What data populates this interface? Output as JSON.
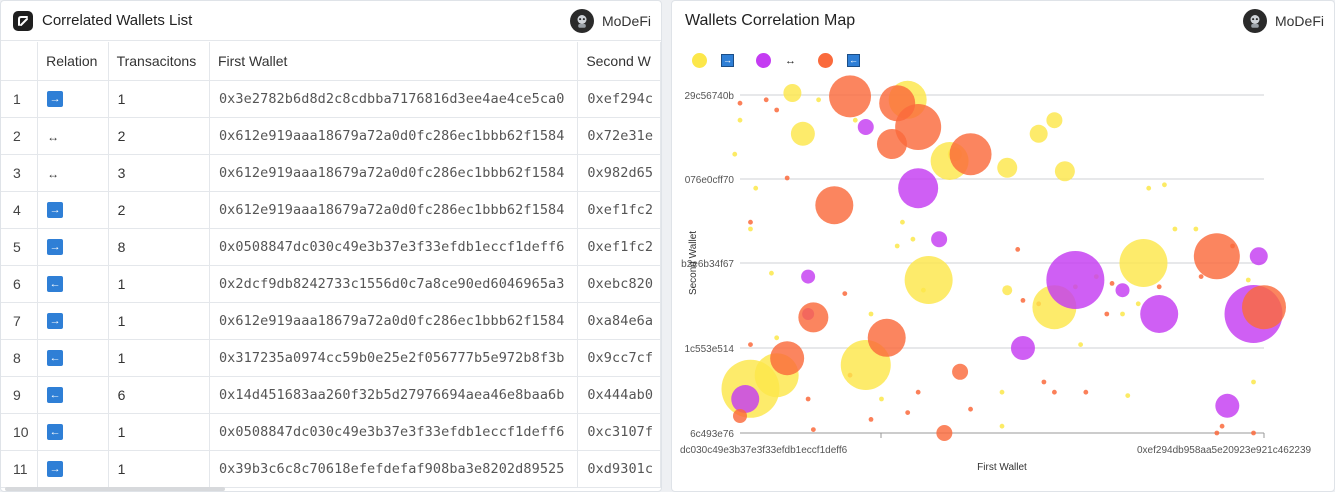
{
  "left_panel": {
    "title": "Correlated Wallets List",
    "brand": "MoDeFi",
    "columns": [
      "",
      "Relation",
      "Transacitons",
      "First Wallet",
      "Second W"
    ],
    "rows": [
      {
        "idx": "1",
        "relation": "→",
        "relation_type": "box",
        "tx": "1",
        "first": "0x3e2782b6d8d2c8cdbba7176816d3ee4ae4ce5ca0",
        "second": "0xef294c"
      },
      {
        "idx": "2",
        "relation": "↔",
        "relation_type": "plain",
        "tx": "2",
        "first": "0x612e919aaa18679a72a0d0fc286ec1bbb62f1584",
        "second": "0x72e31e"
      },
      {
        "idx": "3",
        "relation": "↔",
        "relation_type": "plain",
        "tx": "3",
        "first": "0x612e919aaa18679a72a0d0fc286ec1bbb62f1584",
        "second": "0x982d65"
      },
      {
        "idx": "4",
        "relation": "→",
        "relation_type": "box",
        "tx": "2",
        "first": "0x612e919aaa18679a72a0d0fc286ec1bbb62f1584",
        "second": "0xef1fc2"
      },
      {
        "idx": "5",
        "relation": "→",
        "relation_type": "box",
        "tx": "8",
        "first": "0x0508847dc030c49e3b37e3f33efdb1eccf1deff6",
        "second": "0xef1fc2"
      },
      {
        "idx": "6",
        "relation": "←",
        "relation_type": "box",
        "tx": "1",
        "first": "0x2dcf9db8242733c1556d0c7a8ce90ed6046965a3",
        "second": "0xebc820"
      },
      {
        "idx": "7",
        "relation": "→",
        "relation_type": "box",
        "tx": "1",
        "first": "0x612e919aaa18679a72a0d0fc286ec1bbb62f1584",
        "second": "0xa84e6a"
      },
      {
        "idx": "8",
        "relation": "←",
        "relation_type": "box",
        "tx": "1",
        "first": "0x317235a0974cc59b0e25e2f056777b5e972b8f3b",
        "second": "0x9cc7cf"
      },
      {
        "idx": "9",
        "relation": "←",
        "relation_type": "box",
        "tx": "6",
        "first": "0x14d451683aa260f32b5d27976694aea46e8baa6b",
        "second": "0x444ab0"
      },
      {
        "idx": "10",
        "relation": "←",
        "relation_type": "box",
        "tx": "1",
        "first": "0x0508847dc030c49e3b37e3f33efdb1eccf1deff6",
        "second": "0xc3107f"
      },
      {
        "idx": "11",
        "relation": "→",
        "relation_type": "box",
        "tx": "1",
        "first": "0x39b3c6c8c70618efefdefaf908ba3e8202d89525",
        "second": "0xd9301c"
      }
    ]
  },
  "right_panel": {
    "title": "Wallets Correlation Map",
    "brand": "MoDeFi"
  },
  "chart_data": {
    "type": "scatter",
    "xlabel": "First Wallet",
    "ylabel": "Second Wallet",
    "x_ticks": [
      "dc030c49e3b37e3f33efdb1eccf1deff6",
      "0xef294db958aa5e20923e921c462239"
    ],
    "y_ticks": [
      "29c56740b",
      "076e0cff70",
      "b2e6b34f67",
      "1c553e514",
      "6c493e76"
    ],
    "grid": true,
    "legend_position": "top-left",
    "series": [
      {
        "symbol": "→",
        "color": "#fce74a"
      },
      {
        "symbol": "↔",
        "color": "#c43cf2"
      },
      {
        "symbol": "←",
        "color": "#fa6a3c"
      }
    ],
    "points": [
      {
        "x": 0.02,
        "y": 0.13,
        "r": 29,
        "s": 0
      },
      {
        "x": 0.07,
        "y": 0.17,
        "r": 22,
        "s": 0
      },
      {
        "x": 0.24,
        "y": 0.2,
        "r": 25,
        "s": 0
      },
      {
        "x": 0.36,
        "y": 0.45,
        "r": 24,
        "s": 0
      },
      {
        "x": 0.4,
        "y": 0.8,
        "r": 19,
        "s": 0
      },
      {
        "x": 0.77,
        "y": 0.5,
        "r": 24,
        "s": 0
      },
      {
        "x": 0.6,
        "y": 0.37,
        "r": 22,
        "s": 0
      },
      {
        "x": 0.12,
        "y": 0.88,
        "r": 12,
        "s": 0
      },
      {
        "x": 0.1,
        "y": 1.0,
        "r": 9,
        "s": 0
      },
      {
        "x": 0.51,
        "y": 0.78,
        "r": 10,
        "s": 0
      },
      {
        "x": 0.57,
        "y": 0.88,
        "r": 9,
        "s": 0
      },
      {
        "x": 0.6,
        "y": 0.92,
        "r": 8,
        "s": 0
      },
      {
        "x": 0.32,
        "y": 0.98,
        "r": 19,
        "s": 0
      },
      {
        "x": 0.62,
        "y": 0.77,
        "r": 10,
        "s": 0
      },
      {
        "x": 0.51,
        "y": 0.42,
        "r": 5,
        "s": 0
      },
      {
        "x": 0.41,
        "y": 0.82,
        "r": 7,
        "s": 0
      },
      {
        "x": 0.13,
        "y": 0.35,
        "r": 6,
        "s": 1
      },
      {
        "x": 0.34,
        "y": 0.72,
        "r": 20,
        "s": 1
      },
      {
        "x": 0.24,
        "y": 0.9,
        "r": 8,
        "s": 1
      },
      {
        "x": 0.38,
        "y": 0.57,
        "r": 8,
        "s": 1
      },
      {
        "x": 0.13,
        "y": 0.46,
        "r": 7,
        "s": 1
      },
      {
        "x": 0.54,
        "y": 0.25,
        "r": 12,
        "s": 1
      },
      {
        "x": 0.64,
        "y": 0.45,
        "r": 29,
        "s": 1
      },
      {
        "x": 0.8,
        "y": 0.35,
        "r": 19,
        "s": 1
      },
      {
        "x": 0.73,
        "y": 0.42,
        "r": 7,
        "s": 1
      },
      {
        "x": 0.93,
        "y": 0.08,
        "r": 12,
        "s": 1
      },
      {
        "x": 0.98,
        "y": 0.35,
        "r": 29,
        "s": 1
      },
      {
        "x": 0.99,
        "y": 0.52,
        "r": 9,
        "s": 1
      },
      {
        "x": 0.01,
        "y": 0.1,
        "r": 14,
        "s": 1
      },
      {
        "x": 0.0,
        "y": 0.05,
        "r": 7,
        "s": 2
      },
      {
        "x": 0.44,
        "y": 0.82,
        "r": 21,
        "s": 2
      },
      {
        "x": 0.34,
        "y": 0.9,
        "r": 23,
        "s": 2
      },
      {
        "x": 0.21,
        "y": 0.99,
        "r": 21,
        "s": 2
      },
      {
        "x": 0.3,
        "y": 0.97,
        "r": 18,
        "s": 2
      },
      {
        "x": 0.29,
        "y": 0.85,
        "r": 15,
        "s": 2
      },
      {
        "x": 0.42,
        "y": 0.18,
        "r": 8,
        "s": 2
      },
      {
        "x": 0.28,
        "y": 0.28,
        "r": 19,
        "s": 2
      },
      {
        "x": 0.18,
        "y": 0.67,
        "r": 19,
        "s": 2
      },
      {
        "x": 0.14,
        "y": 0.34,
        "r": 15,
        "s": 2
      },
      {
        "x": 0.09,
        "y": 0.22,
        "r": 17,
        "s": 2
      },
      {
        "x": 0.39,
        "y": 0.0,
        "r": 8,
        "s": 2
      },
      {
        "x": 0.91,
        "y": 0.52,
        "r": 23,
        "s": 2
      },
      {
        "x": 1.0,
        "y": 0.37,
        "r": 22,
        "s": 2
      }
    ],
    "dots": [
      {
        "x": -0.01,
        "y": 0.82,
        "s": 0
      },
      {
        "x": 0.03,
        "y": 0.72,
        "s": 0
      },
      {
        "x": 0.02,
        "y": 0.6,
        "s": 0
      },
      {
        "x": 0.06,
        "y": 0.47,
        "s": 0
      },
      {
        "x": 0.0,
        "y": 0.92,
        "s": 0
      },
      {
        "x": 0.22,
        "y": 0.92,
        "s": 0
      },
      {
        "x": 0.31,
        "y": 0.62,
        "s": 0
      },
      {
        "x": 0.3,
        "y": 0.55,
        "s": 0
      },
      {
        "x": 0.35,
        "y": 0.42,
        "s": 0
      },
      {
        "x": 0.33,
        "y": 0.57,
        "s": 0
      },
      {
        "x": 0.25,
        "y": 0.35,
        "s": 0
      },
      {
        "x": 0.27,
        "y": 0.1,
        "s": 0
      },
      {
        "x": 0.5,
        "y": 0.12,
        "s": 0
      },
      {
        "x": 0.5,
        "y": 0.02,
        "s": 0
      },
      {
        "x": 0.78,
        "y": 0.72,
        "s": 0
      },
      {
        "x": 0.81,
        "y": 0.73,
        "s": 0
      },
      {
        "x": 0.83,
        "y": 0.6,
        "s": 0
      },
      {
        "x": 0.87,
        "y": 0.6,
        "s": 0
      },
      {
        "x": 0.68,
        "y": 0.46,
        "s": 0
      },
      {
        "x": 0.64,
        "y": 0.43,
        "s": 0
      },
      {
        "x": 0.65,
        "y": 0.26,
        "s": 0
      },
      {
        "x": 0.73,
        "y": 0.35,
        "s": 0
      },
      {
        "x": 0.76,
        "y": 0.38,
        "s": 0
      },
      {
        "x": 0.74,
        "y": 0.11,
        "s": 0
      },
      {
        "x": 0.98,
        "y": 0.15,
        "s": 0
      },
      {
        "x": 0.97,
        "y": 0.45,
        "s": 0
      },
      {
        "x": 0.07,
        "y": 0.28,
        "s": 0
      },
      {
        "x": 0.15,
        "y": 0.98,
        "s": 0
      },
      {
        "x": 0.02,
        "y": 0.26,
        "s": 2
      },
      {
        "x": 0.0,
        "y": 0.97,
        "s": 2
      },
      {
        "x": 0.05,
        "y": 0.98,
        "s": 2
      },
      {
        "x": 0.07,
        "y": 0.95,
        "s": 2
      },
      {
        "x": 0.09,
        "y": 0.75,
        "s": 2
      },
      {
        "x": 0.13,
        "y": 0.1,
        "s": 2
      },
      {
        "x": 0.14,
        "y": 0.01,
        "s": 2
      },
      {
        "x": 0.2,
        "y": 0.41,
        "s": 2
      },
      {
        "x": 0.21,
        "y": 0.17,
        "s": 2
      },
      {
        "x": 0.32,
        "y": 0.06,
        "s": 2
      },
      {
        "x": 0.54,
        "y": 0.39,
        "s": 2
      },
      {
        "x": 0.57,
        "y": 0.38,
        "s": 2
      },
      {
        "x": 0.53,
        "y": 0.54,
        "s": 2
      },
      {
        "x": 0.58,
        "y": 0.15,
        "s": 2
      },
      {
        "x": 0.6,
        "y": 0.12,
        "s": 2
      },
      {
        "x": 0.66,
        "y": 0.12,
        "s": 2
      },
      {
        "x": 0.7,
        "y": 0.35,
        "s": 2
      },
      {
        "x": 0.71,
        "y": 0.44,
        "s": 2
      },
      {
        "x": 0.8,
        "y": 0.43,
        "s": 2
      },
      {
        "x": 0.88,
        "y": 0.46,
        "s": 2
      },
      {
        "x": 0.94,
        "y": 0.55,
        "s": 2
      },
      {
        "x": 0.98,
        "y": 0.0,
        "s": 2
      },
      {
        "x": 0.91,
        "y": 0.0,
        "s": 2
      },
      {
        "x": 0.92,
        "y": 0.02,
        "s": 2
      },
      {
        "x": 0.44,
        "y": 0.07,
        "s": 2
      },
      {
        "x": 0.34,
        "y": 0.12,
        "s": 2
      },
      {
        "x": 0.25,
        "y": 0.04,
        "s": 2
      },
      {
        "x": 0.02,
        "y": 0.62,
        "s": 2
      }
    ]
  }
}
